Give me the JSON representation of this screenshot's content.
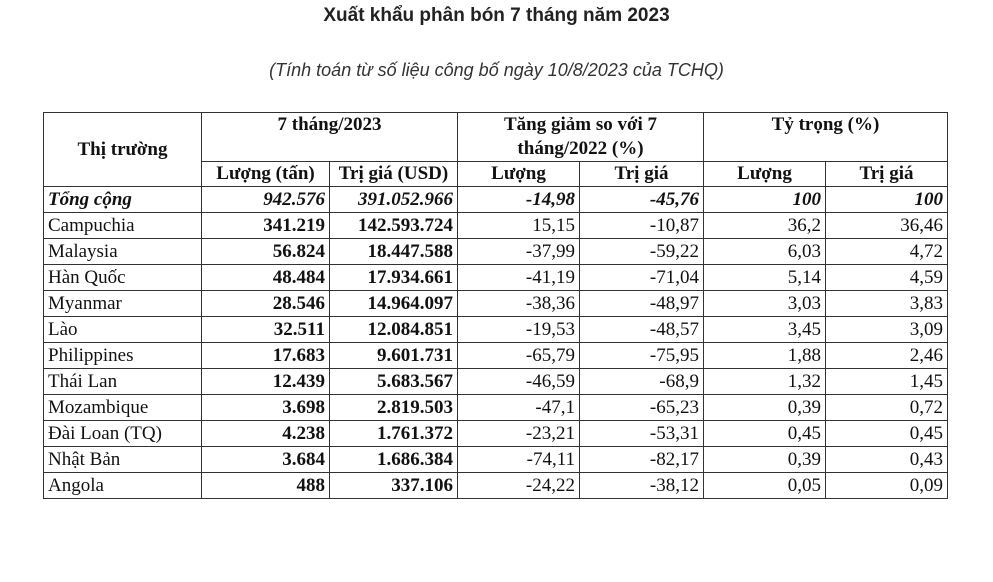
{
  "title": "Xuất khẩu phân bón 7 tháng năm 2023",
  "subtitle": "(Tính toán từ số liệu công bố ngày 10/8/2023 của TCHQ)",
  "table": {
    "headers": {
      "market": "Thị trường",
      "group_7m": "7 tháng/2023",
      "group_change": "Tăng giảm so với 7 tháng/2022 (%)",
      "group_share": "Tỷ trọng (%)",
      "vol_t": "Lượng (tấn)",
      "val_usd": "Trị giá (USD)",
      "vol": "Lượng",
      "val": "Trị giá",
      "share_vol": "Lượng",
      "share_val": "Trị giá"
    },
    "rows": [
      [
        "Tổng cộng",
        "942.576",
        "391.052.966",
        "-14,98",
        "-45,76",
        "100",
        "100"
      ],
      [
        "Campuchia",
        "341.219",
        "142.593.724",
        "15,15",
        "-10,87",
        "36,2",
        "36,46"
      ],
      [
        "Malaysia",
        "56.824",
        "18.447.588",
        "-37,99",
        "-59,22",
        "6,03",
        "4,72"
      ],
      [
        "Hàn Quốc",
        "48.484",
        "17.934.661",
        "-41,19",
        "-71,04",
        "5,14",
        "4,59"
      ],
      [
        "Myanmar",
        "28.546",
        "14.964.097",
        "-38,36",
        "-48,97",
        "3,03",
        "3,83"
      ],
      [
        "Lào",
        "32.511",
        "12.084.851",
        "-19,53",
        "-48,57",
        "3,45",
        "3,09"
      ],
      [
        "Philippines",
        "17.683",
        "9.601.731",
        "-65,79",
        "-75,95",
        "1,88",
        "2,46"
      ],
      [
        "Thái Lan",
        "12.439",
        "5.683.567",
        "-46,59",
        "-68,9",
        "1,32",
        "1,45"
      ],
      [
        "Mozambique",
        "3.698",
        "2.819.503",
        "-47,1",
        "-65,23",
        "0,39",
        "0,72"
      ],
      [
        "Đài Loan (TQ)",
        "4.238",
        "1.761.372",
        "-23,21",
        "-53,31",
        "0,45",
        "0,45"
      ],
      [
        "Nhật Bản",
        "3.684",
        "1.686.384",
        "-74,11",
        "-82,17",
        "0,39",
        "0,43"
      ],
      [
        "Angola",
        "488",
        "337.106",
        "-24,22",
        "-38,12",
        "0,05",
        "0,09"
      ]
    ]
  }
}
